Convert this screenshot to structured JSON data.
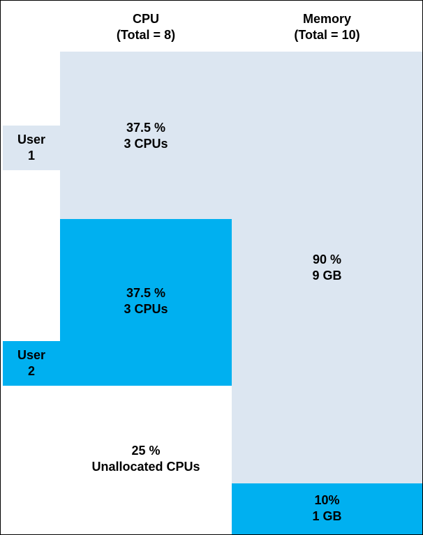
{
  "headers": {
    "cpu": {
      "line1": "CPU",
      "line2": "(Total = 8)"
    },
    "memory": {
      "line1": "Memory",
      "line2": "(Total = 10)"
    }
  },
  "users": {
    "user1": {
      "line1": "User",
      "line2": "1"
    },
    "user2": {
      "line1": "User",
      "line2": "2"
    }
  },
  "cpu": {
    "user1": {
      "percent": "37.5 %",
      "amount": "3 CPUs"
    },
    "user2": {
      "percent": "37.5 %",
      "amount": "3 CPUs"
    },
    "unallocated": {
      "percent": "25 %",
      "amount": "Unallocated CPUs"
    }
  },
  "memory": {
    "user1": {
      "percent": "90 %",
      "amount": "9 GB"
    },
    "user2": {
      "percent": "10%",
      "amount": "1 GB"
    }
  },
  "colors": {
    "user1": "#dce6f1",
    "user2": "#00b0f0",
    "background": "#ffffff",
    "border": "#000000"
  }
}
